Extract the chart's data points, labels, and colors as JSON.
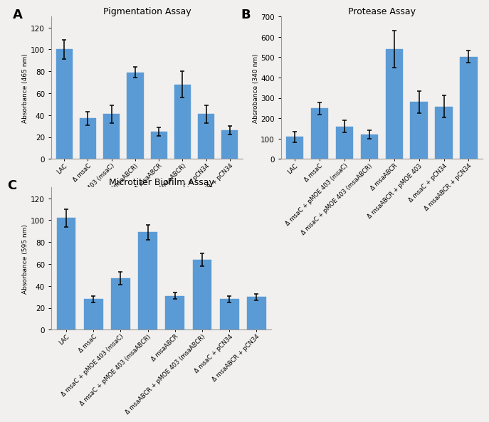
{
  "panel_A": {
    "title": "Pigmentation Assay",
    "ylabel": "Absorbance (465 nm)",
    "ylim": [
      0,
      130
    ],
    "yticks": [
      0,
      20,
      40,
      60,
      80,
      100,
      120
    ],
    "values": [
      100,
      37,
      41,
      79,
      25,
      68,
      41,
      26
    ],
    "errors": [
      9,
      6,
      8,
      5,
      4,
      12,
      8,
      4
    ],
    "labels": [
      "LAC",
      "Δ msaC",
      "Δ msaC + pMOE 403 (msaC)",
      "Δ msaC + pMOE 403 (msaABCR)",
      "Δ msaABCR",
      "Δ msaABCR + pMOE 403 (msaABCR)",
      "Δ msaC + pCN34",
      "Δ msaABCR + pCN34"
    ],
    "panel_label": "A"
  },
  "panel_B": {
    "title": "Protease Assay",
    "ylabel": "Absrobance (340 nm)",
    "ylim": [
      0,
      700
    ],
    "yticks": [
      0,
      100,
      200,
      300,
      400,
      500,
      600,
      700
    ],
    "values": [
      108,
      248,
      160,
      120,
      540,
      280,
      258,
      503
    ],
    "errors": [
      25,
      30,
      30,
      20,
      90,
      55,
      55,
      30
    ],
    "labels": [
      "LAC",
      "Δ msaC",
      "Δ msaC + pMOE 403 (msaC)",
      "Δ msaC + pMOE 403 (msaABCR)",
      "Δ msaABCR",
      "Δ msaABCR + pMOE 403",
      "Δ msaC + pCN34",
      "Δ msaABCR + pCN34"
    ],
    "panel_label": "B"
  },
  "panel_C": {
    "title": "Microtiter Biofilm Assay",
    "ylabel": "Absorbance (595 nm)",
    "ylim": [
      0,
      130
    ],
    "yticks": [
      0,
      20,
      40,
      60,
      80,
      100,
      120
    ],
    "values": [
      102,
      28,
      47,
      89,
      31,
      64,
      28,
      30
    ],
    "errors": [
      8,
      3,
      6,
      7,
      3,
      6,
      3,
      3
    ],
    "labels": [
      "LAC",
      "Δ msaC",
      "Δ msaC + pMOE 403 (msaC)",
      "Δ msaC + pMOE 403 (msaABCR)",
      "Δ msaABCR",
      "Δ msaABCR + pMOE 403 (msaABCR)",
      "Δ msaC + pCN34",
      "Δ msaABCR + pCN34"
    ],
    "panel_label": "C"
  },
  "bar_color": "#5b9bd5",
  "bar_edge_color": "#5b9bd5",
  "error_color": "black",
  "background_color": "#f2f0ee",
  "bar_width": 0.7,
  "title_fontsize": 9,
  "label_fontsize": 6.0,
  "tick_fontsize": 7.5,
  "panel_label_fontsize": 13
}
